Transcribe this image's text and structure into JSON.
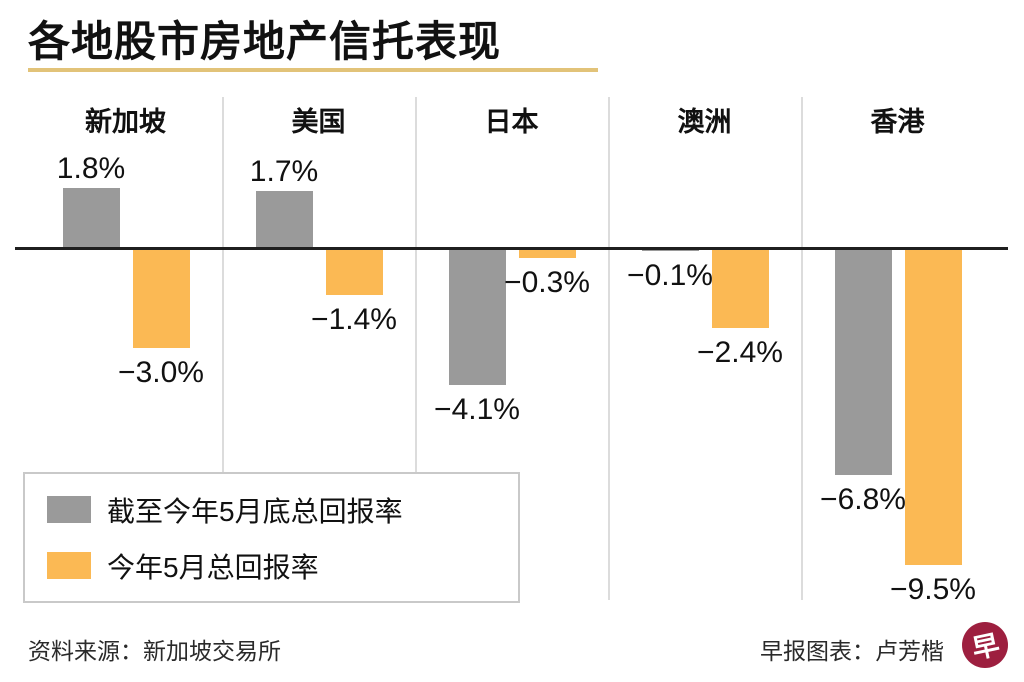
{
  "chart_data": {
    "type": "bar",
    "title": "各地股市房地产信托表现",
    "categories": [
      "新加坡",
      "美国",
      "日本",
      "澳洲",
      "香港"
    ],
    "series": [
      {
        "name": "截至今年5月底总回报率",
        "color": "#9a9a9a",
        "values": [
          1.8,
          1.7,
          -4.1,
          -0.1,
          -6.8
        ]
      },
      {
        "name": "今年5月总回报率",
        "color": "#fbb954",
        "values": [
          -3.0,
          -1.4,
          -0.3,
          -2.4,
          -9.5
        ]
      }
    ],
    "unit": "%",
    "baseline": 0,
    "ylim": [
      -9.5,
      1.8
    ],
    "grid": false,
    "legend_position": "bottom-left",
    "value_labels": {
      "截至今年5月底总回报率": [
        "1.8%",
        "1.7%",
        "−4.1%",
        "−0.1%",
        "−6.8%"
      ],
      "今年5月总回报率": [
        "−3.0%",
        "−1.4%",
        "−0.3%",
        "−2.4%",
        "−9.5%"
      ]
    }
  },
  "colors": {
    "bar_gray": "#9a9a9a",
    "bar_orange": "#fbb954",
    "title_underline_gold": "#e2c379",
    "divider_gray": "#dcdcdc",
    "zero_line_black": "#1f1f1f",
    "logo_maroon": "#9d1f3f"
  },
  "footer": {
    "source": "资料来源：新加坡交易所",
    "credit": "早报图表：卢芳楷",
    "logo_char": "早"
  }
}
